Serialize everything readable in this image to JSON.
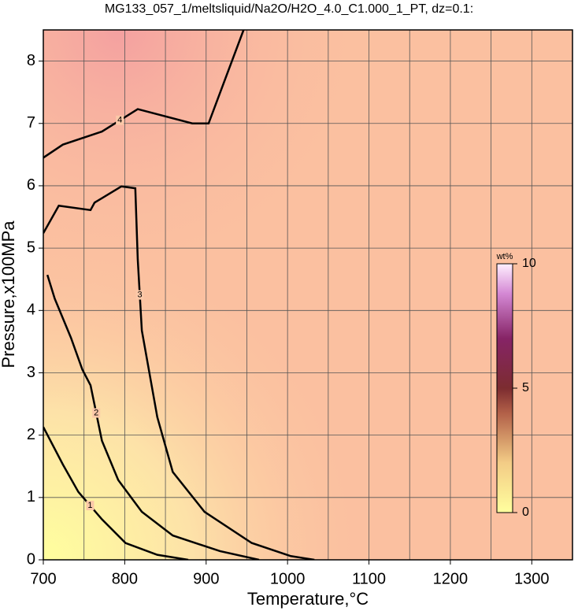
{
  "chart_data": {
    "type": "contour",
    "title": "MG133_057_1/meltsliquid/Na2O/H2O_4.0_C1.000_1_PT, dz=0.1:",
    "x_label": "Temperature,°C",
    "y_label": "Pressure,x100MPa",
    "xlim": [
      700,
      1350
    ],
    "ylim": [
      0,
      8.5
    ],
    "xticks": [
      700,
      800,
      900,
      1000,
      1100,
      1200,
      1300
    ],
    "yticks": [
      0,
      1,
      2,
      3,
      4,
      5,
      6,
      7,
      8
    ],
    "xgrid": [
      750,
      850,
      950,
      1050,
      1150,
      1250,
      1350
    ],
    "grid": true,
    "colorbar": {
      "label": "wt%",
      "lim": [
        0,
        10
      ],
      "ticks": [
        0,
        5,
        10
      ]
    },
    "contours": [
      {
        "level": 1,
        "x": [
          700,
          724,
          743,
          772,
          801,
          840,
          878
        ],
        "y": [
          2.13,
          1.53,
          1.09,
          0.65,
          0.27,
          0.08,
          0
        ]
      },
      {
        "level": 2,
        "x": [
          705,
          714,
          734,
          748,
          758,
          772,
          792,
          821,
          859,
          917,
          965
        ],
        "y": [
          4.57,
          4.19,
          3.56,
          3.05,
          2.8,
          1.91,
          1.28,
          0.77,
          0.39,
          0.14,
          0
        ]
      },
      {
        "level": 3,
        "x": [
          700,
          719,
          758,
          763,
          796,
          813,
          816,
          821,
          840,
          859,
          898,
          956,
          1004,
          1033
        ],
        "y": [
          5.24,
          5.68,
          5.61,
          5.73,
          5.99,
          5.96,
          4.82,
          3.68,
          2.29,
          1.41,
          0.77,
          0.27,
          0.06,
          0
        ]
      },
      {
        "level": 4,
        "x": [
          700,
          724,
          772,
          816,
          883,
          903,
          946
        ],
        "y": [
          6.45,
          6.66,
          6.87,
          7.23,
          7.0,
          7.0,
          8.5
        ]
      }
    ]
  }
}
